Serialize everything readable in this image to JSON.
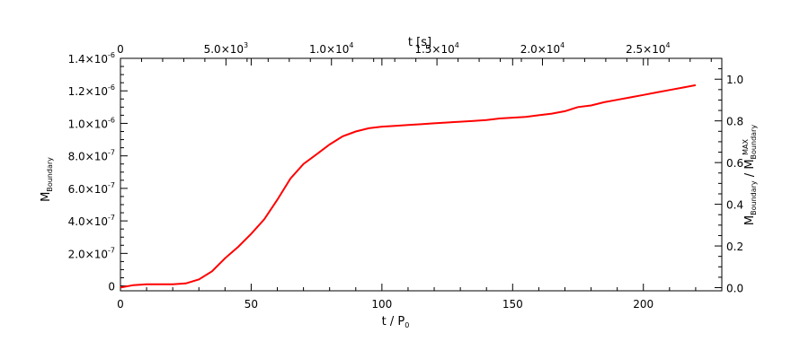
{
  "chart_data": {
    "type": "line",
    "title": "",
    "xlabel_main": "t / P",
    "xlabel_main_sub": "0",
    "xlabel_top": "t [s]",
    "ylabel_left_main": "M",
    "ylabel_left_sub": "Boundary",
    "ylabel_right_main1": "M",
    "ylabel_right_sub1": "Boundary",
    "ylabel_right_sep": " / ",
    "ylabel_right_main2": "M",
    "ylabel_right_sub2": "Boundary",
    "ylabel_right_sup2": "MAX",
    "xlim": [
      0,
      230
    ],
    "ylim_left": [
      -3e-08,
      1.4e-06
    ],
    "ylim_right": [
      -0.015,
      1.1
    ],
    "x_ticks": [
      {
        "v": 0,
        "label": "0"
      },
      {
        "v": 50,
        "label": "50"
      },
      {
        "v": 100,
        "label": "100"
      },
      {
        "v": 150,
        "label": "150"
      },
      {
        "v": 200,
        "label": "200"
      }
    ],
    "top_ticks": [
      {
        "v": 0,
        "mant": "0",
        "exp": ""
      },
      {
        "v": 5000,
        "mant": "5.0×10",
        "exp": "3"
      },
      {
        "v": 10000,
        "mant": "1.0×10",
        "exp": "4"
      },
      {
        "v": 15000,
        "mant": "1.5×10",
        "exp": "4"
      },
      {
        "v": 20000,
        "mant": "2.0×10",
        "exp": "4"
      },
      {
        "v": 25000,
        "mant": "2.5×10",
        "exp": "4"
      }
    ],
    "top_axis_max": 28500,
    "y_left_ticks": [
      {
        "v": 0,
        "mant": "0",
        "exp": ""
      },
      {
        "v": 2e-07,
        "mant": "2.0×10",
        "exp": "-7"
      },
      {
        "v": 4e-07,
        "mant": "4.0×10",
        "exp": "-7"
      },
      {
        "v": 6e-07,
        "mant": "6.0×10",
        "exp": "-7"
      },
      {
        "v": 8e-07,
        "mant": "8.0×10",
        "exp": "-7"
      },
      {
        "v": 1e-06,
        "mant": "1.0×10",
        "exp": "-6"
      },
      {
        "v": 1.2e-06,
        "mant": "1.2×10",
        "exp": "-6"
      },
      {
        "v": 1.4e-06,
        "mant": "1.4×10",
        "exp": "-6"
      }
    ],
    "y_right_ticks": [
      {
        "v": 0.0,
        "label": "0.0"
      },
      {
        "v": 0.2,
        "label": "0.2"
      },
      {
        "v": 0.4,
        "label": "0.4"
      },
      {
        "v": 0.6,
        "label": "0.6"
      },
      {
        "v": 0.8,
        "label": "0.8"
      },
      {
        "v": 1.0,
        "label": "1.0"
      }
    ],
    "series": [
      {
        "color": "#ff0000",
        "x": [
          0,
          5,
          10,
          15,
          20,
          25,
          30,
          35,
          40,
          45,
          50,
          55,
          60,
          65,
          70,
          75,
          80,
          85,
          90,
          95,
          100,
          105,
          110,
          115,
          120,
          125,
          130,
          135,
          140,
          145,
          150,
          155,
          160,
          165,
          170,
          175,
          180,
          185,
          190,
          195,
          200,
          205,
          210,
          215,
          220
        ],
        "y": [
          -1e-08,
          5e-09,
          1e-08,
          1e-08,
          1e-08,
          1.5e-08,
          4e-08,
          9e-08,
          1.7e-07,
          2.4e-07,
          3.2e-07,
          4.1e-07,
          5.3e-07,
          6.6e-07,
          7.5e-07,
          8.1e-07,
          8.7e-07,
          9.2e-07,
          9.5e-07,
          9.7e-07,
          9.8e-07,
          9.85e-07,
          9.9e-07,
          9.95e-07,
          1e-06,
          1.005e-06,
          1.01e-06,
          1.015e-06,
          1.02e-06,
          1.03e-06,
          1.035e-06,
          1.04e-06,
          1.05e-06,
          1.06e-06,
          1.075e-06,
          1.1e-06,
          1.11e-06,
          1.13e-06,
          1.145e-06,
          1.16e-06,
          1.175e-06,
          1.19e-06,
          1.205e-06,
          1.22e-06,
          1.235e-06
        ]
      }
    ],
    "grid": false,
    "legend": "none"
  }
}
